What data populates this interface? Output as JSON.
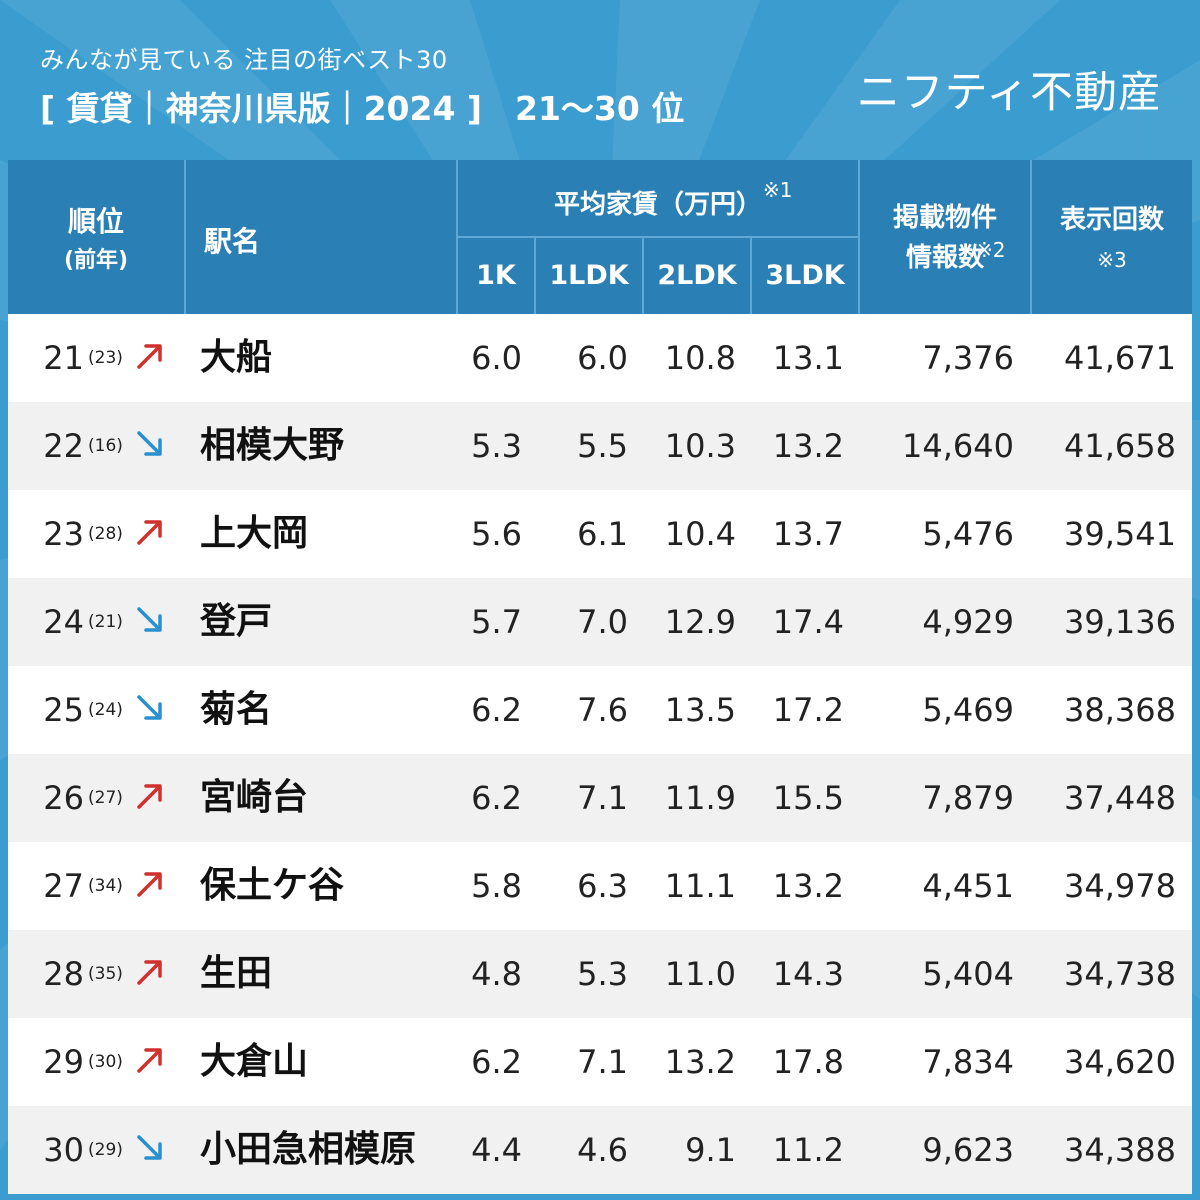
{
  "header": {
    "subtitle": "みんなが見ている 注目の街ベスト30",
    "title": "[ 賃貸｜神奈川県版｜2024 ]　21〜30 位",
    "brand": "ニフティ不動産"
  },
  "table": {
    "headers": {
      "rank": "順位",
      "rank_prev": "(前年)",
      "station": "駅名",
      "rent_group": "平均家賃（万円）",
      "rent_note": "※1",
      "rent_cols": [
        "1K",
        "1LDK",
        "2LDK",
        "3LDK"
      ],
      "listings_line1": "掲載物件",
      "listings_line2": "情報数",
      "listings_note": "※2",
      "views": "表示回数",
      "views_note": "※3"
    },
    "rows": [
      {
        "rank": "21",
        "prev": "(23)",
        "trend": "up",
        "station": "大船",
        "r1k": "6.0",
        "r1ldk": "6.0",
        "r2ldk": "10.8",
        "r3ldk": "13.1",
        "listings": "7,376",
        "views": "41,671"
      },
      {
        "rank": "22",
        "prev": "(16)",
        "trend": "down",
        "station": "相模大野",
        "r1k": "5.3",
        "r1ldk": "5.5",
        "r2ldk": "10.3",
        "r3ldk": "13.2",
        "listings": "14,640",
        "views": "41,658"
      },
      {
        "rank": "23",
        "prev": "(28)",
        "trend": "up",
        "station": "上大岡",
        "r1k": "5.6",
        "r1ldk": "6.1",
        "r2ldk": "10.4",
        "r3ldk": "13.7",
        "listings": "5,476",
        "views": "39,541"
      },
      {
        "rank": "24",
        "prev": "(21)",
        "trend": "down",
        "station": "登戸",
        "r1k": "5.7",
        "r1ldk": "7.0",
        "r2ldk": "12.9",
        "r3ldk": "17.4",
        "listings": "4,929",
        "views": "39,136"
      },
      {
        "rank": "25",
        "prev": "(24)",
        "trend": "down",
        "station": "菊名",
        "r1k": "6.2",
        "r1ldk": "7.6",
        "r2ldk": "13.5",
        "r3ldk": "17.2",
        "listings": "5,469",
        "views": "38,368"
      },
      {
        "rank": "26",
        "prev": "(27)",
        "trend": "up",
        "station": "宮崎台",
        "r1k": "6.2",
        "r1ldk": "7.1",
        "r2ldk": "11.9",
        "r3ldk": "15.5",
        "listings": "7,879",
        "views": "37,448"
      },
      {
        "rank": "27",
        "prev": "(34)",
        "trend": "up",
        "station": "保土ケ谷",
        "r1k": "5.8",
        "r1ldk": "6.3",
        "r2ldk": "11.1",
        "r3ldk": "13.2",
        "listings": "4,451",
        "views": "34,978"
      },
      {
        "rank": "28",
        "prev": "(35)",
        "trend": "up",
        "station": "生田",
        "r1k": "4.8",
        "r1ldk": "5.3",
        "r2ldk": "11.0",
        "r3ldk": "14.3",
        "listings": "5,404",
        "views": "34,738"
      },
      {
        "rank": "29",
        "prev": "(30)",
        "trend": "up",
        "station": "大倉山",
        "r1k": "6.2",
        "r1ldk": "7.1",
        "r2ldk": "13.2",
        "r3ldk": "17.8",
        "listings": "7,834",
        "views": "34,620"
      },
      {
        "rank": "30",
        "prev": "(29)",
        "trend": "down",
        "station": "小田急相模原",
        "r1k": "4.4",
        "r1ldk": "4.6",
        "r2ldk": "9.1",
        "r3ldk": "11.2",
        "listings": "9,623",
        "views": "34,388"
      }
    ]
  },
  "colors": {
    "background": "#3a9ccf",
    "header_bg": "#2a7fb4",
    "trend_up": "#d0312d",
    "trend_down": "#2b8fce",
    "row_alt": "#f1f1f1"
  }
}
